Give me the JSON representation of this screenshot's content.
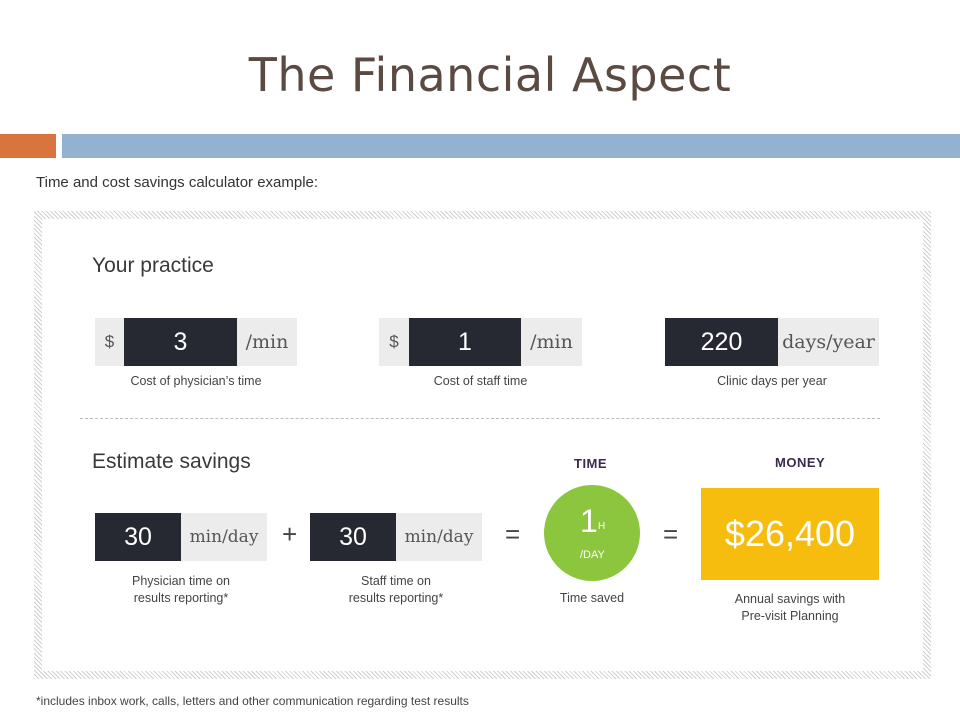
{
  "slide": {
    "title": "The Financial Aspect",
    "subtitle": "Time and cost savings calculator example:",
    "footnote": "*includes inbox work, calls, letters and other communication regarding test results",
    "accent_colors": {
      "orange": "#d9743d",
      "blue": "#93b2d2",
      "green": "#8cc63e",
      "yellow": "#f6bd0f",
      "dark": "#262932"
    }
  },
  "practice": {
    "heading": "Your practice",
    "physician": {
      "prefix": "$",
      "value": "3",
      "suffix": "/min",
      "caption": "Cost of physician’s time"
    },
    "staff": {
      "prefix": "$",
      "value": "1",
      "suffix": "/min",
      "caption": "Cost of staff time"
    },
    "clinic": {
      "value": "220",
      "suffix": "days/year",
      "caption": "Clinic days per year"
    }
  },
  "estimate": {
    "heading": "Estimate savings",
    "physician": {
      "value": "30",
      "suffix": "min/day",
      "caption_line1": "Physician time on",
      "caption_line2": "results reporting*"
    },
    "plus": "+",
    "staff": {
      "value": "30",
      "suffix": "min/day",
      "caption_line1": "Staff time on",
      "caption_line2": "results reporting*"
    },
    "equals": "=",
    "time": {
      "label": "TIME",
      "number": "1",
      "unit": "H",
      "per": "/DAY",
      "caption": "Time saved"
    },
    "equals2": "=",
    "money": {
      "label": "MONEY",
      "amount": "$26,400",
      "caption_line1": "Annual savings with",
      "caption_line2": "Pre-visit Planning"
    }
  }
}
